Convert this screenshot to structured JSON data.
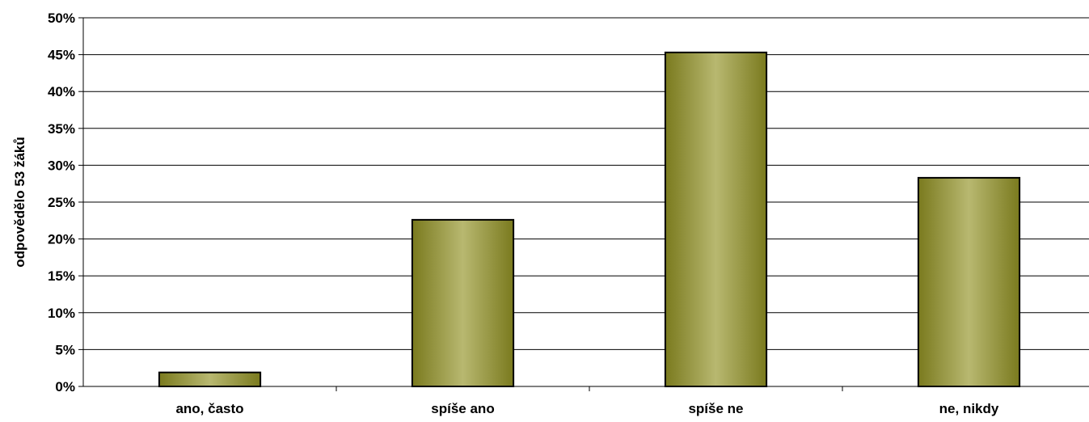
{
  "chart_data": {
    "type": "bar",
    "categories": [
      "ano, často",
      "spíše ano",
      "spíše ne",
      "ne, nikdy"
    ],
    "values": [
      1.9,
      22.6,
      45.3,
      28.3
    ],
    "value_unit": "%",
    "ylabel": "odpovědělo 53 žáků",
    "xlabel": "",
    "ylim": [
      0,
      50
    ],
    "ytick_step": 5,
    "ytick_labels": [
      "0%",
      "5%",
      "10%",
      "15%",
      "20%",
      "25%",
      "30%",
      "35%",
      "40%",
      "45%",
      "50%"
    ],
    "grid": "horizontal",
    "legend": "none",
    "colors": {
      "bar_dark": "#7a7a1e",
      "bar_light": "#b8b870",
      "outline": "#000000",
      "grid": "#000000"
    }
  }
}
